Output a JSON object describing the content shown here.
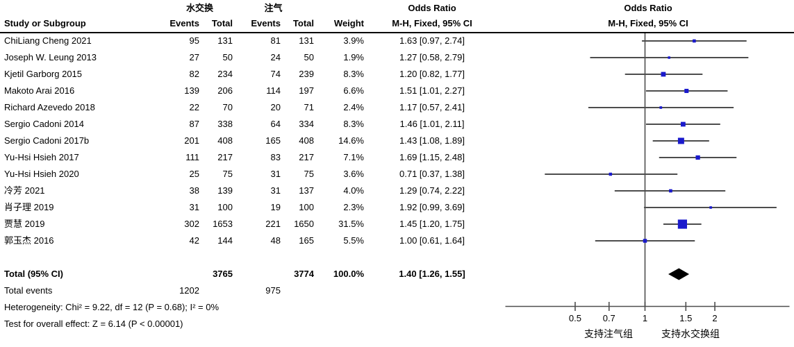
{
  "header": {
    "group1_label": "水交换",
    "group2_label": "注气",
    "odds_ratio_label": "Odds Ratio",
    "method_label": "M-H, Fixed, 95% CI",
    "study_label": "Study or Subgroup",
    "events_label": "Events",
    "total_label": "Total",
    "weight_label": "Weight"
  },
  "chart_data": {
    "type": "scatter",
    "subtype": "forest-plot-meta-analysis",
    "title": "Odds Ratio",
    "method": "M-H, Fixed, 95% CI",
    "x_scale": "log",
    "xlim": [
      0.25,
      4.2
    ],
    "x_ticks": [
      "0.5",
      "0.7",
      "1",
      "1.5",
      "2"
    ],
    "null_line": 1,
    "favors_left": "支持注气组",
    "favors_right": "支持水交换组",
    "studies": [
      {
        "name": "ChiLiang Cheng 2021",
        "e1": "95",
        "t1": "131",
        "e2": "81",
        "t2": "131",
        "weight": "3.9%",
        "weight_val": 3.9,
        "or": 1.63,
        "lo": 0.97,
        "hi": 2.74,
        "or_text": "1.63 [0.97, 2.74]"
      },
      {
        "name": "Joseph W. Leung 2013",
        "e1": "27",
        "t1": "50",
        "e2": "24",
        "t2": "50",
        "weight": "1.9%",
        "weight_val": 1.9,
        "or": 1.27,
        "lo": 0.58,
        "hi": 2.79,
        "or_text": "1.27 [0.58, 2.79]"
      },
      {
        "name": "Kjetil Garborg 2015",
        "e1": "82",
        "t1": "234",
        "e2": "74",
        "t2": "239",
        "weight": "8.3%",
        "weight_val": 8.3,
        "or": 1.2,
        "lo": 0.82,
        "hi": 1.77,
        "or_text": "1.20 [0.82, 1.77]"
      },
      {
        "name": "Makoto Arai 2016",
        "e1": "139",
        "t1": "206",
        "e2": "114",
        "t2": "197",
        "weight": "6.6%",
        "weight_val": 6.6,
        "or": 1.51,
        "lo": 1.01,
        "hi": 2.27,
        "or_text": "1.51 [1.01, 2.27]"
      },
      {
        "name": "Richard Azevedo 2018",
        "e1": "22",
        "t1": "70",
        "e2": "20",
        "t2": "71",
        "weight": "2.4%",
        "weight_val": 2.4,
        "or": 1.17,
        "lo": 0.57,
        "hi": 2.41,
        "or_text": "1.17 [0.57, 2.41]"
      },
      {
        "name": "Sergio Cadoni 2014",
        "e1": "87",
        "t1": "338",
        "e2": "64",
        "t2": "334",
        "weight": "8.3%",
        "weight_val": 8.3,
        "or": 1.46,
        "lo": 1.01,
        "hi": 2.11,
        "or_text": "1.46 [1.01, 2.11]"
      },
      {
        "name": "Sergio Cadoni 2017b",
        "e1": "201",
        "t1": "408",
        "e2": "165",
        "t2": "408",
        "weight": "14.6%",
        "weight_val": 14.6,
        "or": 1.43,
        "lo": 1.08,
        "hi": 1.89,
        "or_text": "1.43 [1.08, 1.89]"
      },
      {
        "name": "Yu-Hsi Hsieh 2017",
        "e1": "111",
        "t1": "217",
        "e2": "83",
        "t2": "217",
        "weight": "7.1%",
        "weight_val": 7.1,
        "or": 1.69,
        "lo": 1.15,
        "hi": 2.48,
        "or_text": "1.69 [1.15, 2.48]"
      },
      {
        "name": "Yu-Hsi Hsieh 2020",
        "e1": "25",
        "t1": "75",
        "e2": "31",
        "t2": "75",
        "weight": "3.6%",
        "weight_val": 3.6,
        "or": 0.71,
        "lo": 0.37,
        "hi": 1.38,
        "or_text": "0.71 [0.37, 1.38]"
      },
      {
        "name": "冷芳 2021",
        "e1": "38",
        "t1": "139",
        "e2": "31",
        "t2": "137",
        "weight": "4.0%",
        "weight_val": 4.0,
        "or": 1.29,
        "lo": 0.74,
        "hi": 2.22,
        "or_text": "1.29 [0.74, 2.22]"
      },
      {
        "name": "肖子理 2019",
        "e1": "31",
        "t1": "100",
        "e2": "19",
        "t2": "100",
        "weight": "2.3%",
        "weight_val": 2.3,
        "or": 1.92,
        "lo": 0.99,
        "hi": 3.69,
        "or_text": "1.92 [0.99, 3.69]"
      },
      {
        "name": "贾慧 2019",
        "e1": "302",
        "t1": "1653",
        "e2": "221",
        "t2": "1650",
        "weight": "31.5%",
        "weight_val": 31.5,
        "or": 1.45,
        "lo": 1.2,
        "hi": 1.75,
        "or_text": "1.45 [1.20, 1.75]"
      },
      {
        "name": "郭玉杰 2016",
        "e1": "42",
        "t1": "144",
        "e2": "48",
        "t2": "165",
        "weight": "5.5%",
        "weight_val": 5.5,
        "or": 1.0,
        "lo": 0.61,
        "hi": 1.64,
        "or_text": "1.00 [0.61, 1.64]"
      }
    ],
    "total": {
      "label": "Total (95% CI)",
      "t1": "3765",
      "t2": "3774",
      "weight": "100.0%",
      "or": 1.4,
      "lo": 1.26,
      "hi": 1.55,
      "or_text": "1.40 [1.26, 1.55]"
    },
    "total_events": {
      "label": "Total events",
      "e1": "1202",
      "e2": "975"
    }
  },
  "footnotes": {
    "heterogeneity": "Heterogeneity: Chi² = 9.22, df = 12 (P = 0.68); I² = 0%",
    "overall_effect": "Test for overall effect: Z = 6.14 (P < 0.00001)"
  },
  "colors": {
    "marker": "#1a1acc",
    "ci_line": "#4d4d4d",
    "diamond": "#000000",
    "axis": "#4d4d4d",
    "rule": "#000000",
    "text": "#000000"
  }
}
